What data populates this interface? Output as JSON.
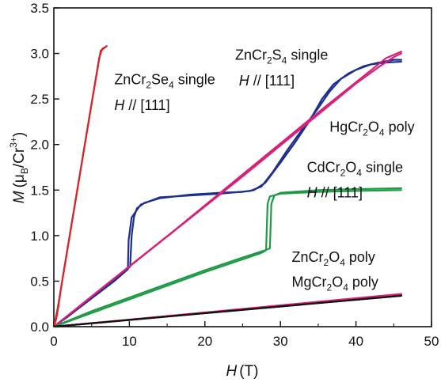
{
  "chart_data": {
    "type": "line",
    "xlabel": {
      "var": "H",
      "unit": "(T)"
    },
    "ylabel": {
      "var": "M",
      "open": "(",
      "mu": "μ",
      "mu_sub": "B",
      "slash": "/Cr",
      "sup": "3+",
      "close": ")"
    },
    "xlim": [
      0,
      50
    ],
    "ylim": [
      0,
      3.5
    ],
    "x_ticks": [
      0,
      10,
      20,
      30,
      40,
      50
    ],
    "x_tick_labels": [
      "0",
      "10",
      "20",
      "30",
      "40",
      "50"
    ],
    "y_ticks": [
      0,
      0.5,
      1.0,
      1.5,
      2.0,
      2.5,
      3.0,
      3.5
    ],
    "y_tick_labels": [
      "0.0",
      "0.5",
      "1.0",
      "1.5",
      "2.0",
      "2.5",
      "3.0",
      "3.5"
    ],
    "grid": false,
    "legend": "none",
    "series": [
      {
        "color": "#d6262b",
        "up": [
          [
            0,
            0
          ],
          [
            0.3,
            0.08
          ],
          [
            0.6,
            0.22
          ],
          [
            1,
            0.45
          ],
          [
            2,
            0.95
          ],
          [
            3,
            1.45
          ],
          [
            4,
            1.95
          ],
          [
            5,
            2.45
          ],
          [
            6,
            2.95
          ],
          [
            6.4,
            3.05
          ],
          [
            7,
            3.08
          ]
        ],
        "down": [
          [
            7,
            3.08
          ],
          [
            6.2,
            3.03
          ],
          [
            5.2,
            2.55
          ],
          [
            4.2,
            2.05
          ],
          [
            3.2,
            1.55
          ],
          [
            2.2,
            1.05
          ],
          [
            1.2,
            0.55
          ],
          [
            0.5,
            0.2
          ],
          [
            0,
            0
          ]
        ]
      },
      {
        "color": "#1d2f8c",
        "up": [
          [
            0,
            0
          ],
          [
            2,
            0.12
          ],
          [
            5,
            0.32
          ],
          [
            8,
            0.52
          ],
          [
            10.1,
            0.66
          ],
          [
            10.3,
            1.0
          ],
          [
            10.6,
            1.2
          ],
          [
            11,
            1.3
          ],
          [
            12,
            1.36
          ],
          [
            14,
            1.41
          ],
          [
            18,
            1.45
          ],
          [
            22,
            1.47
          ],
          [
            25,
            1.48
          ],
          [
            26.5,
            1.5
          ],
          [
            28,
            1.58
          ],
          [
            30,
            1.8
          ],
          [
            32,
            2.03
          ],
          [
            34,
            2.28
          ],
          [
            35.5,
            2.5
          ],
          [
            37,
            2.66
          ],
          [
            39,
            2.78
          ],
          [
            41,
            2.86
          ],
          [
            43,
            2.9
          ],
          [
            45,
            2.93
          ],
          [
            46,
            2.93
          ]
        ],
        "down": [
          [
            46,
            2.91
          ],
          [
            44,
            2.9
          ],
          [
            42,
            2.88
          ],
          [
            40,
            2.82
          ],
          [
            38,
            2.72
          ],
          [
            36.5,
            2.58
          ],
          [
            35,
            2.4
          ],
          [
            33,
            2.18
          ],
          [
            31,
            1.95
          ],
          [
            29,
            1.7
          ],
          [
            27.5,
            1.54
          ],
          [
            26,
            1.49
          ],
          [
            22,
            1.46
          ],
          [
            18,
            1.44
          ],
          [
            14,
            1.42
          ],
          [
            11.5,
            1.34
          ],
          [
            10.3,
            1.2
          ],
          [
            9.9,
            0.95
          ],
          [
            9.8,
            0.63
          ],
          [
            8,
            0.5
          ],
          [
            5,
            0.31
          ],
          [
            2,
            0.12
          ],
          [
            0,
            0
          ]
        ]
      },
      {
        "color": "#d4237a",
        "up": [
          [
            0,
            0
          ],
          [
            5,
            0.33
          ],
          [
            10,
            0.66
          ],
          [
            15,
            0.99
          ],
          [
            20,
            1.32
          ],
          [
            25,
            1.65
          ],
          [
            30,
            1.99
          ],
          [
            35,
            2.33
          ],
          [
            40,
            2.67
          ],
          [
            43,
            2.85
          ],
          [
            45,
            2.96
          ],
          [
            46,
            3.0
          ]
        ],
        "down": [
          [
            46,
            3.02
          ],
          [
            44,
            2.95
          ],
          [
            41,
            2.75
          ],
          [
            36,
            2.42
          ],
          [
            31,
            2.08
          ],
          [
            26,
            1.74
          ],
          [
            21,
            1.4
          ],
          [
            16,
            1.06
          ],
          [
            11,
            0.73
          ],
          [
            6,
            0.4
          ],
          [
            0,
            0
          ]
        ]
      },
      {
        "color": "#1e9a47",
        "up": [
          [
            0,
            0
          ],
          [
            5,
            0.15
          ],
          [
            10,
            0.3
          ],
          [
            15,
            0.45
          ],
          [
            20,
            0.6
          ],
          [
            25,
            0.74
          ],
          [
            27.5,
            0.81
          ],
          [
            28.1,
            0.84
          ],
          [
            28.3,
            1.35
          ],
          [
            28.6,
            1.43
          ],
          [
            30,
            1.46
          ],
          [
            35,
            1.48
          ],
          [
            40,
            1.49
          ],
          [
            46,
            1.5
          ]
        ],
        "down": [
          [
            46,
            1.52
          ],
          [
            40,
            1.51
          ],
          [
            35,
            1.5
          ],
          [
            30,
            1.47
          ],
          [
            29.2,
            1.44
          ],
          [
            28.8,
            1.35
          ],
          [
            28.6,
            0.86
          ],
          [
            28,
            0.84
          ],
          [
            25,
            0.76
          ],
          [
            20,
            0.62
          ],
          [
            15,
            0.47
          ],
          [
            10,
            0.32
          ],
          [
            5,
            0.17
          ],
          [
            0,
            0
          ]
        ]
      },
      {
        "color": "#d4237a",
        "up": [
          [
            0,
            0
          ],
          [
            46,
            0.35
          ]
        ],
        "down": [
          [
            46,
            0.36
          ],
          [
            0,
            0
          ]
        ]
      },
      {
        "color": "#111111",
        "up": [
          [
            0,
            0
          ],
          [
            46,
            0.34
          ]
        ],
        "down": [
          [
            46,
            0.34
          ],
          [
            0,
            0
          ]
        ]
      }
    ],
    "annotations": [
      {
        "base": "ZnCr",
        "s1": "2",
        "mid": "Se",
        "s2": "4",
        "tail": " single",
        "x": 8.0,
        "y": 2.66
      },
      {
        "italic": "H",
        "rest": " // [111]",
        "x": 8.0,
        "y": 2.38
      },
      {
        "base": "ZnCr",
        "s1": "2",
        "mid": "S",
        "s2": "4",
        "tail": " single",
        "x": 24.0,
        "y": 2.93
      },
      {
        "italic": "H",
        "rest": " // [111]",
        "x": 24.5,
        "y": 2.65
      },
      {
        "base": "HgCr",
        "s1": "2",
        "mid": "O",
        "s2": "4",
        "tail": " poly",
        "x": 36.5,
        "y": 2.14
      },
      {
        "base": "CdCr",
        "s1": "2",
        "mid": "O",
        "s2": "4",
        "tail": " single",
        "x": 33.5,
        "y": 1.7
      },
      {
        "italic": "H",
        "rest": " // [111]",
        "x": 33.5,
        "y": 1.42
      },
      {
        "base": "ZnCr",
        "s1": "2",
        "mid": "O",
        "s2": "4",
        "tail": " poly",
        "x": 31.5,
        "y": 0.71
      },
      {
        "base": "MgCr",
        "s1": "2",
        "mid": "O",
        "s2": "4",
        "tail": " poly",
        "x": 31.5,
        "y": 0.44
      }
    ]
  }
}
